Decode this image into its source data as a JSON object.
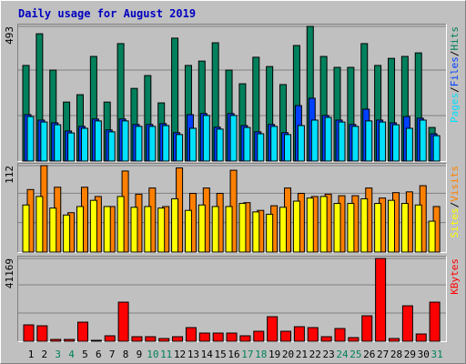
{
  "title": "Daily usage for August 2019",
  "legend_separator": "/",
  "chart_data": [
    {
      "type": "bar",
      "ylim": [
        0,
        493
      ],
      "yticks": [
        493
      ],
      "series": [
        {
          "name": "Hits",
          "color": "#00805c",
          "values": [
            350,
            466,
            333,
            216,
            243,
            383,
            216,
            430,
            266,
            313,
            213,
            450,
            350,
            366,
            433,
            333,
            283,
            380,
            346,
            280,
            423,
            493,
            383,
            343,
            343,
            430,
            350,
            376,
            383,
            396,
            123
          ]
        },
        {
          "name": "Files",
          "color": "#0040ff",
          "values": [
            170,
            150,
            140,
            110,
            127,
            154,
            114,
            154,
            134,
            134,
            137,
            104,
            170,
            174,
            124,
            174,
            130,
            107,
            134,
            104,
            203,
            230,
            167,
            150,
            134,
            190,
            150,
            140,
            163,
            157,
            100
          ]
        },
        {
          "name": "Pages",
          "color": "#00e0ff",
          "values": [
            163,
            143,
            133,
            103,
            120,
            147,
            107,
            147,
            127,
            127,
            130,
            97,
            120,
            167,
            117,
            167,
            123,
            100,
            127,
            97,
            130,
            150,
            160,
            143,
            127,
            147,
            143,
            133,
            120,
            150,
            93
          ]
        }
      ]
    },
    {
      "type": "bar",
      "ylim": [
        0,
        112
      ],
      "yticks": [
        112
      ],
      "series": [
        {
          "name": "Visits",
          "color": "#ff8000",
          "values": [
            81,
            112,
            84,
            51,
            84,
            72,
            59,
            105,
            75,
            83,
            59,
            109,
            76,
            83,
            76,
            106,
            64,
            54,
            60,
            83,
            76,
            72,
            75,
            73,
            73,
            83,
            70,
            77,
            78,
            86,
            59
          ]
        },
        {
          "name": "Sites",
          "color": "#ffff00",
          "values": [
            61,
            72,
            57,
            48,
            59,
            67,
            59,
            72,
            58,
            59,
            57,
            69,
            54,
            61,
            59,
            59,
            63,
            52,
            49,
            58,
            66,
            70,
            72,
            63,
            63,
            69,
            63,
            67,
            63,
            61,
            40
          ]
        }
      ]
    },
    {
      "type": "bar",
      "ylim": [
        0,
        41169
      ],
      "yticks": [
        41169
      ],
      "categories": [
        "1",
        "2",
        "3",
        "4",
        "5",
        "6",
        "7",
        "8",
        "9",
        "10",
        "11",
        "12",
        "13",
        "14",
        "15",
        "16",
        "17",
        "18",
        "19",
        "20",
        "21",
        "22",
        "23",
        "24",
        "25",
        "26",
        "27",
        "28",
        "29",
        "30",
        "31"
      ],
      "category_colors": [
        "#000000",
        "#000000",
        "#00805c",
        "#00805c",
        "#000000",
        "#000000",
        "#000000",
        "#000000",
        "#000000",
        "#00805c",
        "#00805c",
        "#000000",
        "#000000",
        "#000000",
        "#000000",
        "#000000",
        "#00805c",
        "#00805c",
        "#000000",
        "#000000",
        "#000000",
        "#000000",
        "#000000",
        "#00805c",
        "#00805c",
        "#000000",
        "#000000",
        "#000000",
        "#000000",
        "#000000",
        "#00805c"
      ],
      "series": [
        {
          "name": "KBytes",
          "color": "#ff0000",
          "values": [
            8136,
            7684,
            904,
            904,
            9492,
            452,
            2712,
            19436,
            2260,
            2260,
            1356,
            2260,
            6780,
            4068,
            4068,
            4068,
            2712,
            4972,
            12204,
            4972,
            7232,
            6780,
            2260,
            6328,
            1808,
            12656,
            41169,
            1356,
            17628,
            3616,
            19436
          ]
        }
      ]
    }
  ]
}
